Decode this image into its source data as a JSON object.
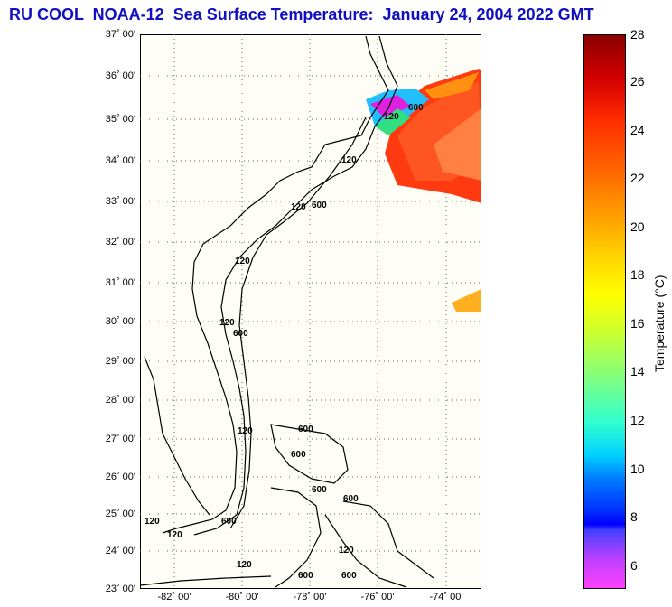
{
  "title": "RU COOL  NOAA-12  Sea Surface Temperature:  January 24, 2004 2022 GMT",
  "lat_labels": [
    "37˚ 00'",
    "36˚ 00'",
    "35˚ 00'",
    "34˚ 00'",
    "33˚ 00'",
    "32˚ 00'",
    "31˚ 00'",
    "30˚ 00'",
    "29˚ 00'",
    "28˚ 00'",
    "27˚ 00'",
    "26˚ 00'",
    "25˚ 00'",
    "24˚ 00'",
    "23˚ 00'"
  ],
  "lon_labels": [
    "-82˚ 00'",
    "-80˚ 00'",
    "-78˚ 00'",
    "-76˚ 00'",
    "-74˚ 00'"
  ],
  "colorbar": {
    "ticks": [
      "28",
      "26",
      "24",
      "22",
      "20",
      "18",
      "16",
      "14",
      "12",
      "10",
      "8",
      "6"
    ],
    "label": "Temperature (°C)"
  },
  "contour_labels": [
    "120",
    "600",
    "120",
    "600",
    "120",
    "600",
    "120",
    "600",
    "120",
    "600",
    "120",
    "600"
  ]
}
